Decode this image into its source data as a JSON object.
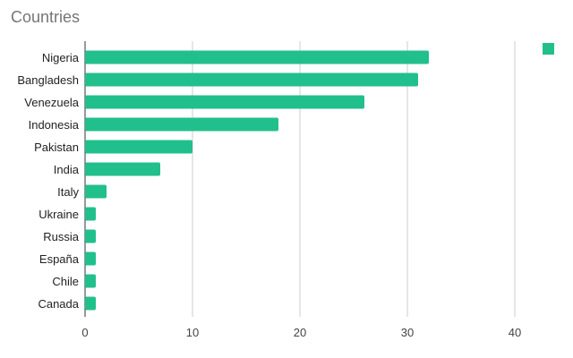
{
  "chart_data": {
    "type": "bar",
    "orientation": "horizontal",
    "title": "Countries",
    "categories": [
      "Nigeria",
      "Bangladesh",
      "Venezuela",
      "Indonesia",
      "Pakistan",
      "India",
      "Italy",
      "Ukraine",
      "Russia",
      "España",
      "Chile",
      "Canada"
    ],
    "series": [
      {
        "values": [
          32,
          31,
          26,
          18,
          10,
          7,
          2,
          1,
          1,
          1,
          1,
          1
        ]
      }
    ],
    "xlabel": "",
    "ylabel": "",
    "xlim": [
      0,
      42
    ],
    "xticks": [
      "0",
      "10",
      "20",
      "30",
      "40"
    ],
    "grid": true,
    "legend_position": "top-right",
    "bar_color": "#21bf8c",
    "grid_color": "#cccccc",
    "axis_color": "#333333"
  }
}
